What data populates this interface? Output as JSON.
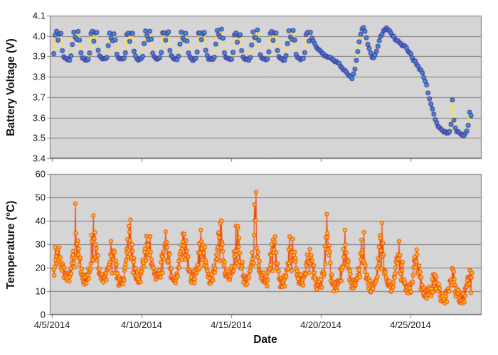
{
  "figure": {
    "bg": "#ffffff",
    "plot_bg": "#d5d5d5",
    "grid_color": "#7a7a7a",
    "border_color": "#767676",
    "text_color": "#1a1a1a"
  },
  "xaxis": {
    "title": "Date",
    "tick_labels": [
      "4/5/2014",
      "4/10/2014",
      "4/15/2014",
      "4/20/2014",
      "4/25/2014"
    ],
    "tick_days": [
      0,
      5,
      10,
      15,
      20
    ],
    "days_span": 24
  },
  "chart_data": [
    {
      "id": "battery-voltage",
      "type": "scatter",
      "ylabel": "Battery Voltage (V)",
      "ylim": [
        3.4,
        4.1
      ],
      "ytick_labels": [
        "4.1",
        "4.0",
        "3.9",
        "3.8",
        "3.7",
        "3.6",
        "3.5",
        "3.4"
      ],
      "yticks": [
        4.1,
        4.0,
        3.9,
        3.8,
        3.7,
        3.6,
        3.5,
        3.4
      ],
      "grid": true,
      "legend": "none",
      "series": {
        "name": "battery-voltage",
        "marker_fill": "#2ba7df",
        "marker_stroke": "#4b38a6",
        "marker_radius": 2.7,
        "line_color": "#ffe045",
        "line_width": 1.6,
        "model": {
          "seed": 7,
          "t_start": 0.1,
          "t_end": 23.45,
          "dt": 0.08,
          "phase": 0.15,
          "noise": 0.0055,
          "osc_end": 14.4,
          "baseline": 3.925,
          "day_rise": 0.105,
          "night_drop": 0.04,
          "day_amp": [
            1.0,
            0.96,
            1.03,
            0.9,
            1.0,
            0.97,
            1.04,
            0.93,
            1.0,
            1.05,
            0.92,
            0.99,
            1.02,
            0.97,
            1.0
          ],
          "day_shape": [
            [
              0,
              -1
            ],
            [
              0.14,
              -1
            ],
            [
              0.2,
              -0.75
            ],
            [
              0.27,
              0.1
            ],
            [
              0.33,
              0.8
            ],
            [
              0.38,
              1
            ],
            [
              0.43,
              0.8
            ],
            [
              0.5,
              0.45
            ],
            [
              0.57,
              0.8
            ],
            [
              0.62,
              1
            ],
            [
              0.68,
              0.7
            ],
            [
              0.74,
              -0.1
            ],
            [
              0.8,
              -0.55
            ],
            [
              0.87,
              -0.85
            ],
            [
              1,
              -1
            ]
          ],
          "trend": [
            [
              14.4,
              4.02
            ],
            [
              14.55,
              3.975
            ],
            [
              14.75,
              3.945
            ],
            [
              15.0,
              3.92
            ],
            [
              15.3,
              3.9
            ],
            [
              15.7,
              3.885
            ],
            [
              16.0,
              3.862
            ],
            [
              16.25,
              3.84
            ],
            [
              16.45,
              3.815
            ],
            [
              16.6,
              3.8
            ],
            [
              16.72,
              3.79
            ],
            [
              16.85,
              3.815
            ],
            [
              17.0,
              3.89
            ],
            [
              17.12,
              3.96
            ],
            [
              17.25,
              4.02
            ],
            [
              17.35,
              4.045
            ],
            [
              17.45,
              4.025
            ],
            [
              17.58,
              3.975
            ],
            [
              17.7,
              3.935
            ],
            [
              17.85,
              3.9
            ],
            [
              17.95,
              3.89
            ],
            [
              18.1,
              3.925
            ],
            [
              18.3,
              3.985
            ],
            [
              18.5,
              4.03
            ],
            [
              18.65,
              4.04
            ],
            [
              18.8,
              4.025
            ],
            [
              19.0,
              4.0
            ],
            [
              19.2,
              3.98
            ],
            [
              19.45,
              3.96
            ],
            [
              19.7,
              3.945
            ],
            [
              19.9,
              3.928
            ],
            [
              20.05,
              3.905
            ],
            [
              20.2,
              3.88
            ],
            [
              20.35,
              3.862
            ],
            [
              20.5,
              3.84
            ],
            [
              20.62,
              3.825
            ],
            [
              20.75,
              3.8
            ],
            [
              20.9,
              3.755
            ],
            [
              21.05,
              3.7
            ],
            [
              21.2,
              3.645
            ],
            [
              21.35,
              3.6
            ],
            [
              21.5,
              3.565
            ],
            [
              21.65,
              3.548
            ],
            [
              21.8,
              3.535
            ],
            [
              22.0,
              3.527
            ],
            [
              22.15,
              3.52
            ],
            [
              22.24,
              3.545
            ],
            [
              22.3,
              3.625
            ],
            [
              22.34,
              3.69
            ],
            [
              22.4,
              3.6
            ],
            [
              22.47,
              3.55
            ],
            [
              22.6,
              3.53
            ],
            [
              22.8,
              3.52
            ],
            [
              23.0,
              3.515
            ],
            [
              23.1,
              3.52
            ],
            [
              23.2,
              3.55
            ],
            [
              23.28,
              3.61
            ],
            [
              23.33,
              3.65
            ],
            [
              23.4,
              3.6
            ],
            [
              23.45,
              3.565
            ]
          ]
        }
      }
    },
    {
      "id": "temperature",
      "type": "scatter",
      "ylabel": "Temperature (°C)",
      "ylim": [
        0,
        60
      ],
      "ytick_labels": [
        "60",
        "50",
        "40",
        "30",
        "20",
        "10",
        "0"
      ],
      "yticks": [
        60,
        50,
        40,
        30,
        20,
        10,
        0
      ],
      "grid": true,
      "legend": "none",
      "series": {
        "name": "temperature",
        "marker_fill": "#ffd60a",
        "marker_stroke": "#f2571a",
        "marker_radius": 2.4,
        "line_color": "#f04806",
        "line_width": 1.2,
        "model": {
          "seed": 13,
          "t_start": 0.1,
          "t_end": 23.45,
          "dt": 0.028,
          "phase": 0.15,
          "noise": 2.5,
          "cloud_band": 17,
          "night_min": [
            16,
            15,
            16,
            14,
            16,
            17,
            15,
            16,
            15,
            17,
            15,
            16,
            14,
            15,
            13,
            12,
            13,
            12,
            12,
            11,
            9,
            7,
            7,
            7
          ],
          "day_max": [
            33,
            48,
            44,
            37,
            54,
            40,
            36,
            47,
            45,
            53,
            50,
            54,
            40,
            36,
            38,
            52,
            36,
            43,
            52,
            43,
            30,
            20,
            20,
            19
          ]
        }
      }
    }
  ]
}
